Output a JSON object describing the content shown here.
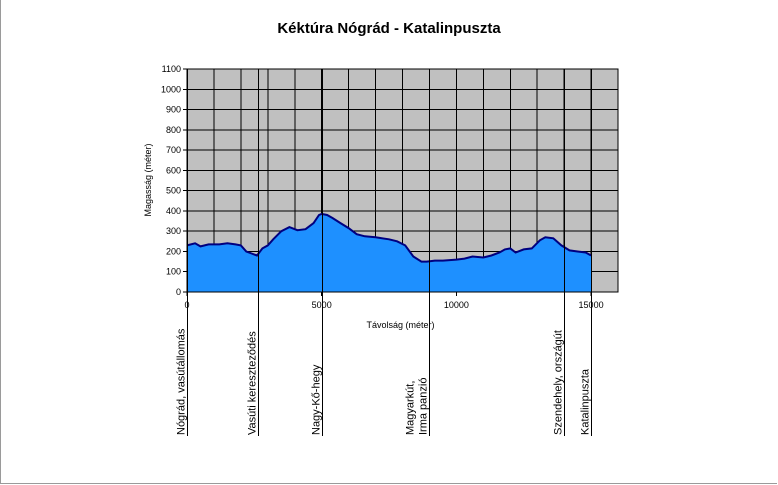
{
  "chart_data": {
    "type": "area",
    "title": "Kéktúra  Nógrád - Katalinpuszta",
    "xlabel": "Távolság (méter)",
    "ylabel": "Magasság (méter)",
    "xlim": [
      0,
      16000
    ],
    "ylim": [
      0,
      1100
    ],
    "x_ticks": [
      0,
      5000,
      10000,
      15000
    ],
    "y_ticks": [
      0,
      100,
      200,
      300,
      400,
      500,
      600,
      700,
      800,
      900,
      1000,
      1100
    ],
    "grid": true,
    "x_grid_step": 1000,
    "colors": {
      "fill": "#1e90ff",
      "line": "#000080",
      "plot_bg": "#c0c0c0",
      "grid": "#000000"
    },
    "series": [
      {
        "x": [
          0,
          300,
          500,
          800,
          1200,
          1500,
          1800,
          2000,
          2200,
          2400,
          2600,
          2800,
          3000,
          3200,
          3500,
          3800,
          4100,
          4400,
          4700,
          4900,
          5000,
          5200,
          5400,
          5700,
          6000,
          6300,
          6600,
          7000,
          7500,
          7800,
          8100,
          8400,
          8700,
          8900,
          9200,
          9500,
          10000,
          10300,
          10600,
          11000,
          11300,
          11600,
          11800,
          12000,
          12200,
          12500,
          12800,
          13100,
          13300,
          13600,
          13900,
          14200,
          14500,
          14800,
          15000
        ],
        "y": [
          230,
          240,
          225,
          235,
          235,
          240,
          235,
          230,
          200,
          190,
          180,
          215,
          230,
          260,
          300,
          320,
          305,
          310,
          340,
          380,
          385,
          380,
          365,
          340,
          315,
          285,
          275,
          270,
          260,
          250,
          230,
          175,
          150,
          150,
          155,
          155,
          160,
          165,
          175,
          170,
          180,
          195,
          210,
          215,
          195,
          210,
          215,
          255,
          270,
          265,
          230,
          205,
          200,
          195,
          180
        ]
      }
    ],
    "waypoints": [
      {
        "x": 0,
        "label": "Nógrád, vasútállomás"
      },
      {
        "x": 2650,
        "label": "Vasúti kereszteződés"
      },
      {
        "x": 5000,
        "label": "Nagy-Kő-hegy"
      },
      {
        "x": 9000,
        "label": "Magyarkút,\nIrma panzió"
      },
      {
        "x": 14000,
        "label": "Szendehely, országút"
      },
      {
        "x": 15000,
        "label": "Katalinpuszta"
      }
    ]
  }
}
